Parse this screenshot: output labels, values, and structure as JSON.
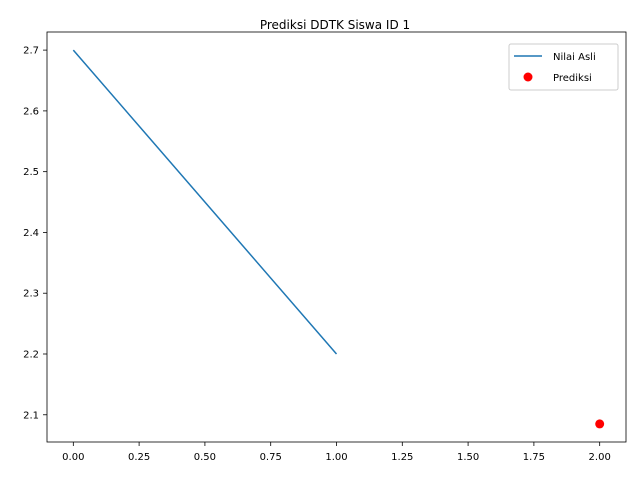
{
  "chart_data": {
    "type": "line",
    "title": "Prediksi DDTK Siswa ID 1",
    "xlabel": "",
    "ylabel": "",
    "xlim": [
      -0.1,
      2.1
    ],
    "ylim": [
      2.0552,
      2.7298
    ],
    "x_ticks": [
      0.0,
      0.25,
      0.5,
      0.75,
      1.0,
      1.25,
      1.5,
      1.75,
      2.0
    ],
    "x_tick_labels": [
      "0.00",
      "0.25",
      "0.50",
      "0.75",
      "1.00",
      "1.25",
      "1.50",
      "1.75",
      "2.00"
    ],
    "y_ticks": [
      2.1,
      2.2,
      2.3,
      2.4,
      2.5,
      2.6,
      2.7
    ],
    "y_tick_labels": [
      "2.1",
      "2.2",
      "2.3",
      "2.4",
      "2.5",
      "2.6",
      "2.7"
    ],
    "grid": false,
    "legend_position": "top-right",
    "series": [
      {
        "name": "Nilai Asli",
        "kind": "line",
        "color": "#1f77b4",
        "x": [
          0,
          1
        ],
        "y": [
          2.7,
          2.2
        ]
      },
      {
        "name": "Prediksi",
        "kind": "scatter",
        "color": "#ff0000",
        "x": [
          2
        ],
        "y": [
          2.085
        ]
      }
    ]
  }
}
